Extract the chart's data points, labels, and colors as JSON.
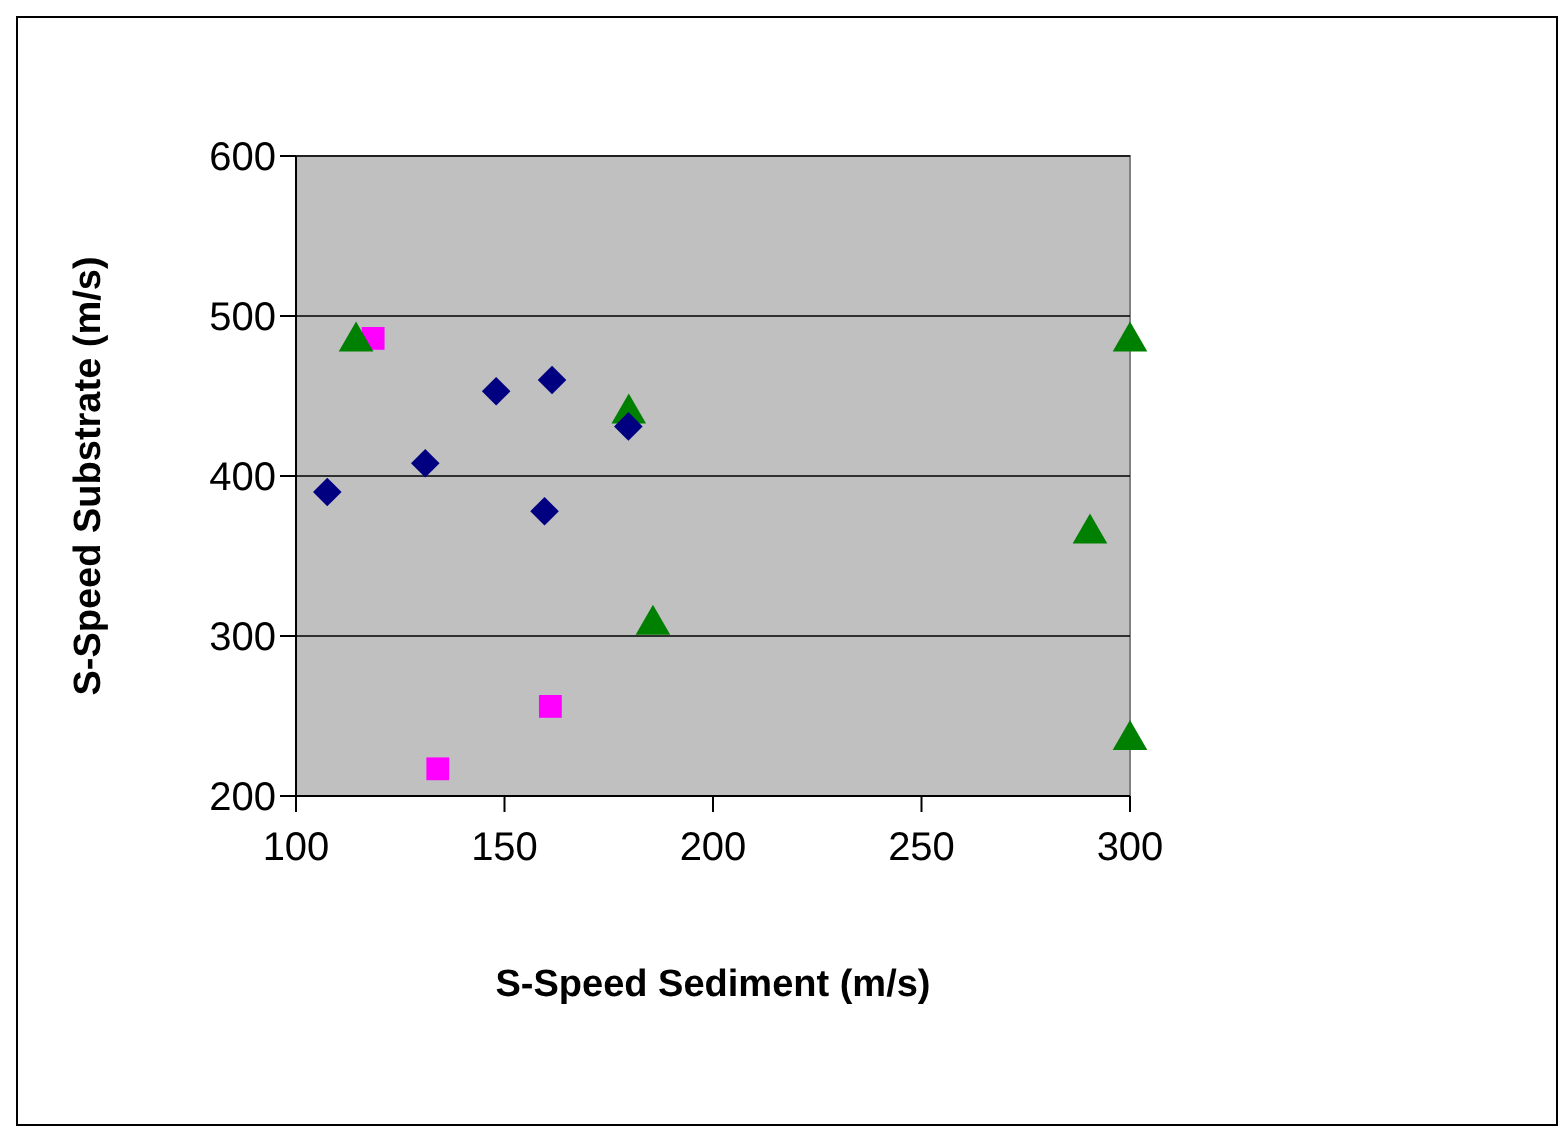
{
  "chart_data": {
    "type": "scatter",
    "xlabel": "S-Speed Sediment (m/s)",
    "ylabel": "S-Speed Substrate (m/s)",
    "xlim": [
      100,
      300
    ],
    "ylim": [
      200,
      600
    ],
    "xticks": [
      100,
      150,
      200,
      250,
      300
    ],
    "yticks": [
      200,
      300,
      400,
      500,
      600
    ],
    "grid": "y",
    "series": [
      {
        "color": "#000080",
        "marker": "diamond",
        "x": [
          131
        ],
        "values": [
          408
        ]
      },
      {
        "color": "#ff00ff",
        "marker": "square",
        "x": [
          134
        ],
        "values": [
          217
        ]
      },
      {
        "color": "#008000",
        "marker": "triangle",
        "x": [
          179.8
        ],
        "values": [
          439
        ]
      },
      {
        "color": "#000080",
        "marker": "diamond",
        "x": [
          107.5,
          148,
          161.4,
          159.6,
          179.7
        ],
        "values": [
          390,
          453,
          460,
          378,
          431
        ]
      },
      {
        "color": "#ff00ff",
        "marker": "square",
        "x": [
          118.5,
          161
        ],
        "values": [
          486,
          256
        ]
      },
      {
        "color": "#008000",
        "marker": "triangle",
        "x": [
          114.4,
          185.6,
          290.4,
          300,
          300
        ],
        "values": [
          484,
          307,
          364,
          484,
          235
        ]
      }
    ]
  }
}
